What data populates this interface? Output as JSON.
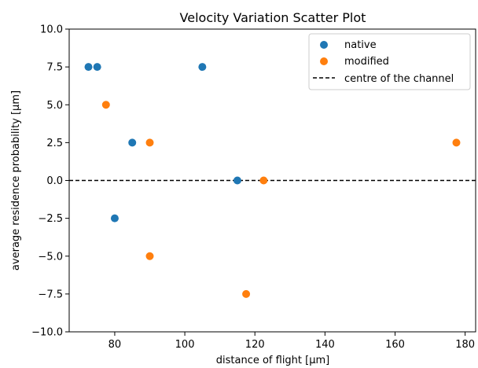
{
  "chart_data": {
    "type": "scatter",
    "title": "Velocity Variation Scatter Plot",
    "xlabel": "distance of flight [μm]",
    "ylabel": "average residence probability [μm]",
    "xlim": [
      67,
      183
    ],
    "ylim": [
      -10,
      10
    ],
    "xticks": [
      80,
      100,
      120,
      140,
      160,
      180
    ],
    "yticks": [
      -10.0,
      -7.5,
      -5.0,
      -2.5,
      0.0,
      2.5,
      5.0,
      7.5,
      10.0
    ],
    "xtick_labels": [
      "80",
      "100",
      "120",
      "140",
      "160",
      "180"
    ],
    "ytick_labels": [
      "−10.0",
      "−7.5",
      "−5.0",
      "−2.5",
      "0.0",
      "2.5",
      "5.0",
      "7.5",
      "10.0"
    ],
    "grid": false,
    "legend_position": "top-right",
    "series": [
      {
        "name": "native",
        "color": "#1f77b4",
        "points": [
          {
            "x": 72.5,
            "y": 7.5
          },
          {
            "x": 75,
            "y": 7.5
          },
          {
            "x": 80,
            "y": -2.5
          },
          {
            "x": 85,
            "y": 2.5
          },
          {
            "x": 105,
            "y": 7.5
          },
          {
            "x": 115,
            "y": 0.0
          }
        ]
      },
      {
        "name": "modified",
        "color": "#ff7f0e",
        "points": [
          {
            "x": 77.5,
            "y": 5.0
          },
          {
            "x": 90,
            "y": 2.5
          },
          {
            "x": 90,
            "y": -5.0
          },
          {
            "x": 117.5,
            "y": -7.5
          },
          {
            "x": 122.5,
            "y": 0.0
          },
          {
            "x": 177.5,
            "y": 2.5
          }
        ]
      }
    ],
    "reference_line": {
      "name": "centre of the channel",
      "y": 0.0,
      "style": "dashed",
      "color": "#000000"
    }
  }
}
